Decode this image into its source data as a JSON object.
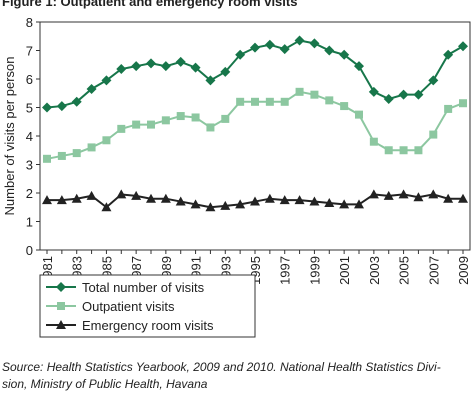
{
  "chart_data": {
    "type": "line",
    "title": "Figure 1: Outpatient and emergency room visits",
    "y_label": "Number of visits per person",
    "categories": [
      "1981",
      null,
      "1983",
      null,
      "1985",
      null,
      "1987",
      null,
      "1989",
      null,
      "1991",
      null,
      "1993",
      null,
      "1995",
      null,
      "1997",
      null,
      "1999",
      null,
      "2001",
      null,
      "2003",
      null,
      "2005",
      null,
      "2007",
      null,
      "2009"
    ],
    "series": [
      {
        "name": "Total number of visits",
        "color": "#17764a",
        "marker": "diamond",
        "values": [
          5.0,
          5.05,
          5.2,
          5.65,
          5.95,
          6.35,
          6.45,
          6.55,
          6.45,
          6.6,
          6.4,
          5.95,
          6.25,
          6.85,
          7.1,
          7.2,
          7.05,
          7.35,
          7.25,
          7.0,
          6.85,
          6.45,
          5.55,
          5.3,
          5.45,
          5.45,
          5.95,
          6.85,
          7.15
        ]
      },
      {
        "name": "Outpatient visits",
        "color": "#8cc7a0",
        "marker": "square",
        "values": [
          3.2,
          3.3,
          3.4,
          3.6,
          3.85,
          4.25,
          4.4,
          4.4,
          4.55,
          4.7,
          4.65,
          4.3,
          4.6,
          5.2,
          5.2,
          5.2,
          5.2,
          5.55,
          5.45,
          5.25,
          5.05,
          4.75,
          3.8,
          3.5,
          3.5,
          3.5,
          4.05,
          4.95,
          5.15
        ]
      },
      {
        "name": "Emergency room visits",
        "color": "#222222",
        "marker": "triangle",
        "values": [
          1.75,
          1.75,
          1.8,
          1.9,
          1.5,
          1.95,
          1.9,
          1.8,
          1.8,
          1.7,
          1.6,
          1.5,
          1.55,
          1.6,
          1.7,
          1.8,
          1.75,
          1.75,
          1.7,
          1.65,
          1.6,
          1.6,
          1.95,
          1.9,
          1.95,
          1.85,
          1.95,
          1.8,
          1.8
        ]
      }
    ],
    "ylim": [
      0,
      8
    ],
    "yticks": [
      0,
      1,
      2,
      3,
      4,
      5,
      6,
      7,
      8
    ],
    "grid": false,
    "legend": "bottom-left",
    "source": [
      "Source: Health Statistics Yearbook, 2009 and 2010. National Health Statistics Divi-",
      "sion, Ministry of Public Health, Havana"
    ]
  }
}
